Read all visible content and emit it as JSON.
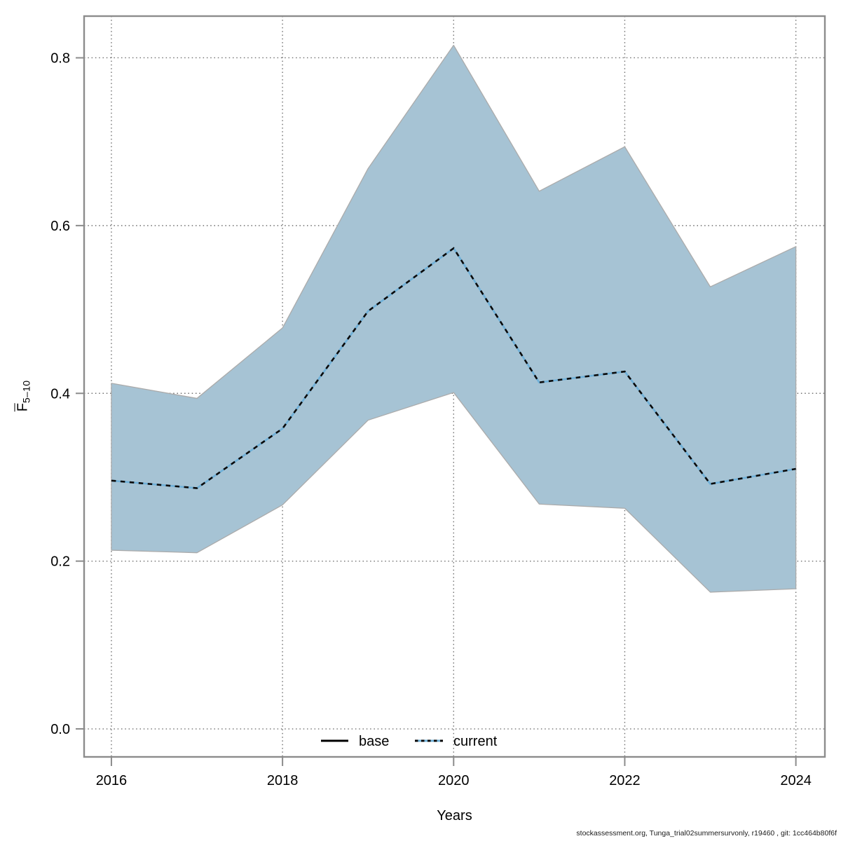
{
  "chart_data": {
    "type": "area",
    "title": "",
    "xlabel": "Years",
    "ylabel": {
      "main": "F",
      "overbar": true,
      "sub": "5–10"
    },
    "x": [
      2016,
      2017,
      2018,
      2019,
      2020,
      2021,
      2022,
      2023,
      2024
    ],
    "series": [
      {
        "name": "current",
        "role": "median-line",
        "values": [
          0.296,
          0.287,
          0.358,
          0.498,
          0.573,
          0.413,
          0.426,
          0.292,
          0.31
        ]
      },
      {
        "name": "ci-lower",
        "role": "band-lower",
        "values": [
          0.213,
          0.21,
          0.267,
          0.368,
          0.401,
          0.268,
          0.263,
          0.163,
          0.167
        ]
      },
      {
        "name": "ci-upper",
        "role": "band-upper",
        "values": [
          0.412,
          0.394,
          0.478,
          0.668,
          0.815,
          0.641,
          0.694,
          0.527,
          0.575
        ]
      }
    ],
    "x_ticks": {
      "values": [
        2016,
        2018,
        2020,
        2022,
        2024
      ],
      "labels": [
        "2016",
        "2018",
        "2020",
        "2022",
        "2024"
      ]
    },
    "y_ticks": {
      "values": [
        0.0,
        0.2,
        0.4,
        0.6,
        0.8
      ],
      "labels": [
        "0.0",
        "0.2",
        "0.4",
        "0.6",
        "0.8"
      ]
    },
    "xlim": [
      2015.681,
      2024.339
    ],
    "ylim": [
      -0.0334,
      0.8497
    ],
    "grid": "dotted",
    "legend": {
      "position": "bottom-center",
      "entries": [
        {
          "label": "base",
          "line": "solid",
          "color": "#000000"
        },
        {
          "label": "current",
          "line": "dotted",
          "color": "#6fb0d8"
        }
      ]
    },
    "colors": {
      "band": "#a6c3d4",
      "band_border": "#ababab",
      "current_underlay": "#6fb0d8",
      "current_dash": "#0a0a0a",
      "axis_box": "#8c8c8c",
      "grid": "#6f6f6f",
      "text": "#000000",
      "footer": "#1a1a1a"
    }
  },
  "footer": {
    "text": "stockassessment.org, Tunga_trial02summersurvonly, r19460 , git: 1cc464b80f6f"
  }
}
